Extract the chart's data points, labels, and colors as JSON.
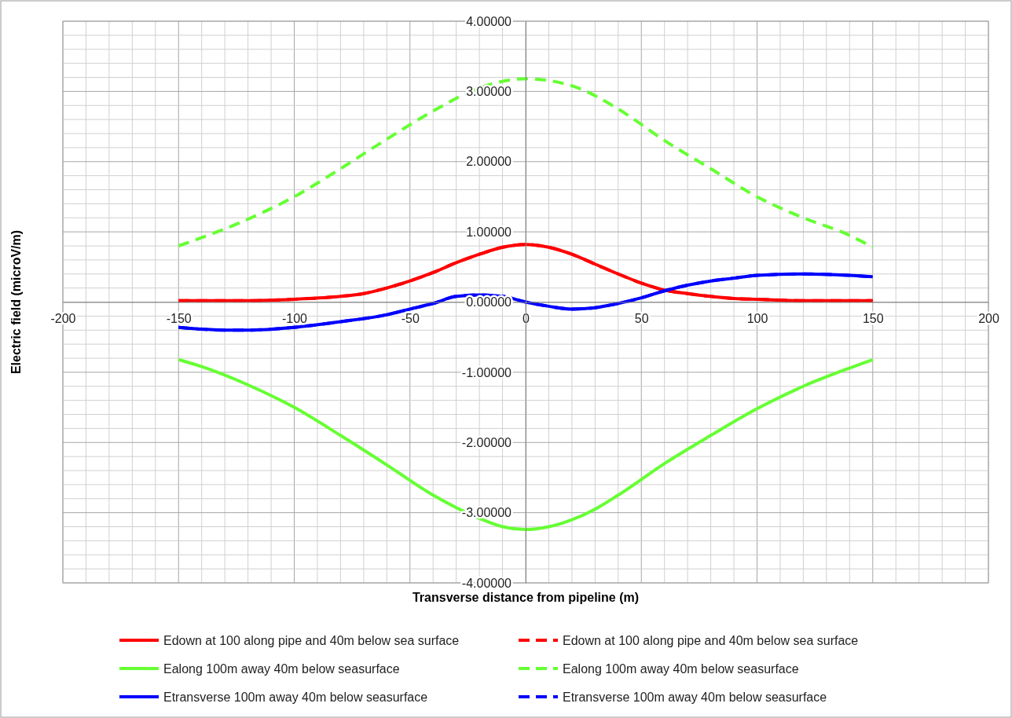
{
  "chart_data": {
    "type": "line",
    "xlabel": "Transverse distance from pipeline (m)",
    "ylabel": "Electric field (microV/m)",
    "xlim": [
      -200,
      200
    ],
    "xticks": [
      -200,
      {
        "value": -190,
        "label": null
      },
      {
        "value": -180,
        "label": null
      },
      {
        "value": -170,
        "label": null
      },
      {
        "value": -160,
        "label": null
      },
      -150,
      {
        "value": -140,
        "label": null
      },
      {
        "value": -130,
        "label": null
      },
      {
        "value": -120,
        "label": null
      },
      {
        "value": -110,
        "label": null
      },
      -100,
      {
        "value": -90,
        "label": null
      },
      {
        "value": -80,
        "label": null
      },
      {
        "value": -70,
        "label": null
      },
      {
        "value": -60,
        "label": null
      },
      -50,
      {
        "value": -40,
        "label": null
      },
      {
        "value": -30,
        "label": null
      },
      {
        "value": -20,
        "label": null
      },
      {
        "value": -10,
        "label": null
      },
      0,
      {
        "value": 10,
        "label": null
      },
      {
        "value": 20,
        "label": null
      },
      {
        "value": 30,
        "label": null
      },
      {
        "value": 40,
        "label": null
      },
      50,
      {
        "value": 60,
        "label": null
      },
      {
        "value": 70,
        "label": null
      },
      {
        "value": 80,
        "label": null
      },
      {
        "value": 90,
        "label": null
      },
      100,
      {
        "value": 110,
        "label": null
      },
      {
        "value": 120,
        "label": null
      },
      {
        "value": 130,
        "label": null
      },
      {
        "value": 140,
        "label": null
      },
      150,
      {
        "value": 160,
        "label": null
      },
      {
        "value": 170,
        "label": null
      },
      {
        "value": 180,
        "label": null
      },
      {
        "value": 190,
        "label": null
      },
      200
    ],
    "ylim": [
      -4,
      4
    ],
    "yticks": [
      {
        "value": -4,
        "label": "-4.00000"
      },
      {
        "value": -3.8,
        "label": null
      },
      {
        "value": -3.6,
        "label": null
      },
      {
        "value": -3.4,
        "label": null
      },
      {
        "value": -3.2,
        "label": null
      },
      {
        "value": -3,
        "label": "-3.00000"
      },
      {
        "value": -2.8,
        "label": null
      },
      {
        "value": -2.6,
        "label": null
      },
      {
        "value": -2.4,
        "label": null
      },
      {
        "value": -2.2,
        "label": null
      },
      {
        "value": -2,
        "label": "-2.00000"
      },
      {
        "value": -1.8,
        "label": null
      },
      {
        "value": -1.6,
        "label": null
      },
      {
        "value": -1.4,
        "label": null
      },
      {
        "value": -1.2,
        "label": null
      },
      {
        "value": -1,
        "label": "-1.00000"
      },
      {
        "value": -0.8,
        "label": null
      },
      {
        "value": -0.6,
        "label": null
      },
      {
        "value": -0.4,
        "label": null
      },
      {
        "value": -0.2,
        "label": null
      },
      {
        "value": 0,
        "label": "0.00000"
      },
      {
        "value": 0.2,
        "label": null
      },
      {
        "value": 0.4,
        "label": null
      },
      {
        "value": 0.6,
        "label": null
      },
      {
        "value": 0.8,
        "label": null
      },
      {
        "value": 1,
        "label": "1.00000"
      },
      {
        "value": 1.2,
        "label": null
      },
      {
        "value": 1.4,
        "label": null
      },
      {
        "value": 1.6,
        "label": null
      },
      {
        "value": 1.8,
        "label": null
      },
      {
        "value": 2,
        "label": "2.00000"
      },
      {
        "value": 2.2,
        "label": null
      },
      {
        "value": 2.4,
        "label": null
      },
      {
        "value": 2.6,
        "label": null
      },
      {
        "value": 2.8,
        "label": null
      },
      {
        "value": 3,
        "label": "3.00000"
      },
      {
        "value": 3.2,
        "label": null
      },
      {
        "value": 3.4,
        "label": null
      },
      {
        "value": 3.6,
        "label": null
      },
      {
        "value": 3.8,
        "label": null
      },
      {
        "value": 4,
        "label": "4.00000"
      }
    ],
    "grid": true,
    "legend": "bottom",
    "marker": "none",
    "series": [
      {
        "name": "Edown at 100 along pipe and 40m below sea surface",
        "color": "#ff0000",
        "line_style": "solid",
        "x": [
          -150,
          -120,
          -100,
          -80,
          -70,
          -60,
          -50,
          -40,
          -30,
          -20,
          -10,
          0,
          10,
          20,
          30,
          40,
          50,
          60,
          70,
          80,
          90,
          100,
          120,
          150
        ],
        "values": [
          0.02,
          0.02,
          0.04,
          0.08,
          0.12,
          0.2,
          0.3,
          0.42,
          0.56,
          0.68,
          0.78,
          0.82,
          0.78,
          0.68,
          0.54,
          0.4,
          0.27,
          0.17,
          0.12,
          0.08,
          0.05,
          0.04,
          0.02,
          0.02
        ]
      },
      {
        "name": "Edown at 100 along pipe and 40m below sea surface",
        "color": "#ff0000",
        "line_style": "dashed",
        "x": [
          -150,
          -120,
          -100,
          -80,
          -70,
          -60,
          -50,
          -40,
          -30,
          -20,
          -10,
          0,
          10,
          20,
          30,
          40,
          50,
          60,
          70,
          80,
          90,
          100,
          120,
          150
        ],
        "values": [
          0.02,
          0.02,
          0.04,
          0.08,
          0.12,
          0.2,
          0.3,
          0.42,
          0.56,
          0.68,
          0.78,
          0.82,
          0.78,
          0.68,
          0.54,
          0.4,
          0.27,
          0.17,
          0.12,
          0.08,
          0.05,
          0.04,
          0.02,
          0.02
        ]
      },
      {
        "name": "Ealong 100m away 40m below seasurface",
        "color": "#66ff33",
        "line_style": "solid",
        "x": [
          -150,
          -140,
          -120,
          -100,
          -80,
          -60,
          -40,
          -20,
          -10,
          0,
          10,
          20,
          30,
          40,
          60,
          80,
          100,
          120,
          140,
          150
        ],
        "values": [
          -0.82,
          -0.92,
          -1.18,
          -1.5,
          -1.9,
          -2.32,
          -2.75,
          -3.08,
          -3.2,
          -3.24,
          -3.2,
          -3.1,
          -2.95,
          -2.75,
          -2.3,
          -1.9,
          -1.52,
          -1.2,
          -0.94,
          -0.82
        ]
      },
      {
        "name": "Ealong 100m away 40m below seasurface",
        "color": "#66ff33",
        "line_style": "dashed",
        "x": [
          -150,
          -120,
          -100,
          -80,
          -60,
          -40,
          -20,
          0,
          20,
          40,
          60,
          80,
          100,
          120,
          140,
          150
        ],
        "values": [
          0.8,
          1.18,
          1.5,
          1.9,
          2.32,
          2.72,
          3.05,
          3.18,
          3.08,
          2.75,
          2.3,
          1.9,
          1.5,
          1.2,
          0.95,
          0.78
        ]
      },
      {
        "name": "Etransverse 100m away 40m below seasurface",
        "color": "#0000ff",
        "line_style": "solid",
        "x": [
          -150,
          -130,
          -120,
          -100,
          -80,
          -60,
          -50,
          -40,
          -30,
          -20,
          -10,
          0,
          10,
          20,
          30,
          40,
          50,
          60,
          70,
          80,
          90,
          100,
          120,
          140,
          150
        ],
        "values": [
          -0.36,
          -0.4,
          -0.4,
          -0.36,
          -0.28,
          -0.18,
          -0.1,
          -0.02,
          0.08,
          0.1,
          0.08,
          0,
          -0.06,
          -0.1,
          -0.08,
          -0.02,
          0.06,
          0.16,
          0.24,
          0.3,
          0.34,
          0.38,
          0.4,
          0.38,
          0.36
        ]
      },
      {
        "name": "Etransverse 100m away 40m below seasurface",
        "color": "#0000ff",
        "line_style": "dashed",
        "x": [
          -150,
          -130,
          -120,
          -100,
          -80,
          -60,
          -50,
          -40,
          -30,
          -20,
          -10,
          0,
          10,
          20,
          30,
          40,
          50,
          60,
          70,
          80,
          90,
          100,
          120,
          140,
          150
        ],
        "values": [
          -0.36,
          -0.4,
          -0.4,
          -0.36,
          -0.28,
          -0.18,
          -0.1,
          -0.02,
          0.08,
          0.1,
          0.08,
          0,
          -0.06,
          -0.1,
          -0.08,
          -0.02,
          0.06,
          0.16,
          0.24,
          0.3,
          0.34,
          0.38,
          0.4,
          0.38,
          0.36
        ]
      }
    ]
  }
}
